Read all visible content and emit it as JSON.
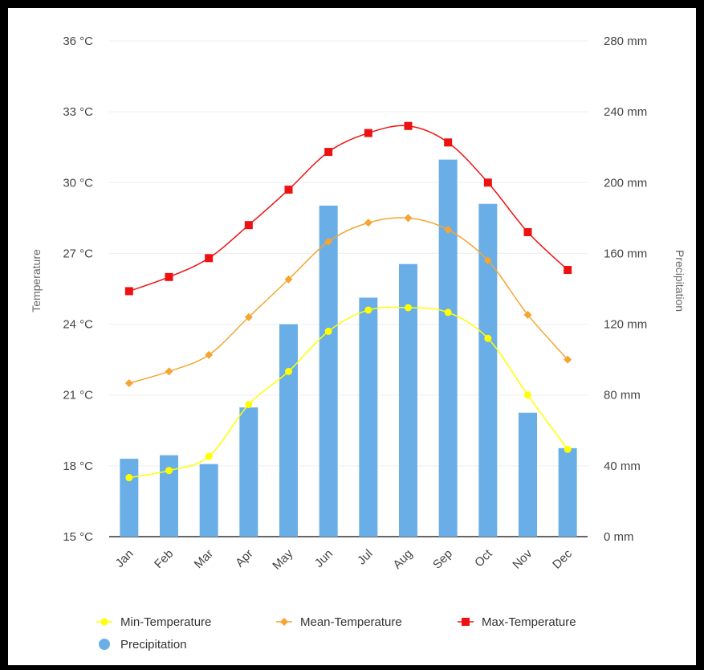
{
  "chart_data": {
    "type": "bar+line",
    "categories": [
      "Jan",
      "Feb",
      "Mar",
      "Apr",
      "May",
      "Jun",
      "Jul",
      "Aug",
      "Sep",
      "Oct",
      "Nov",
      "Dec"
    ],
    "y_left": {
      "label": "Temperature",
      "min": 15,
      "max": 36,
      "ticks": [
        15,
        18,
        21,
        24,
        27,
        30,
        33,
        36
      ],
      "tick_labels": [
        "15 °C",
        "18 °C",
        "21 °C",
        "24 °C",
        "27 °C",
        "30 °C",
        "33 °C",
        "36 °C"
      ]
    },
    "y_right": {
      "label": "Precipitation",
      "min": 0,
      "max": 280,
      "ticks": [
        0,
        40,
        80,
        120,
        160,
        200,
        240,
        280
      ],
      "tick_labels": [
        "0 mm",
        "40 mm",
        "80 mm",
        "120 mm",
        "160 mm",
        "200 mm",
        "240 mm",
        "280 mm"
      ]
    },
    "grid": true,
    "legend_position": "bottom",
    "series": [
      {
        "name": "Min-Temperature",
        "type": "line",
        "axis": "left",
        "color": "#ffff00",
        "marker": "circle",
        "values": [
          17.5,
          17.8,
          18.4,
          20.6,
          22.0,
          23.7,
          24.6,
          24.7,
          24.5,
          23.4,
          21.0,
          18.7
        ]
      },
      {
        "name": "Mean-Temperature",
        "type": "line",
        "axis": "left",
        "color": "#f4a533",
        "marker": "diamond",
        "values": [
          21.5,
          22.0,
          22.7,
          24.3,
          25.9,
          27.5,
          28.3,
          28.5,
          28.0,
          26.7,
          24.4,
          22.5
        ]
      },
      {
        "name": "Max-Temperature",
        "type": "line",
        "axis": "left",
        "color": "#ee1111",
        "marker": "square",
        "values": [
          25.4,
          26.0,
          26.8,
          28.2,
          29.7,
          31.3,
          32.1,
          32.4,
          31.7,
          30.0,
          27.9,
          26.3
        ]
      },
      {
        "name": "Precipitation",
        "type": "bar",
        "axis": "right",
        "color": "#6aaee8",
        "marker": "circle",
        "values": [
          44,
          46,
          41,
          73,
          120,
          187,
          135,
          154,
          213,
          188,
          70,
          50
        ]
      }
    ]
  }
}
